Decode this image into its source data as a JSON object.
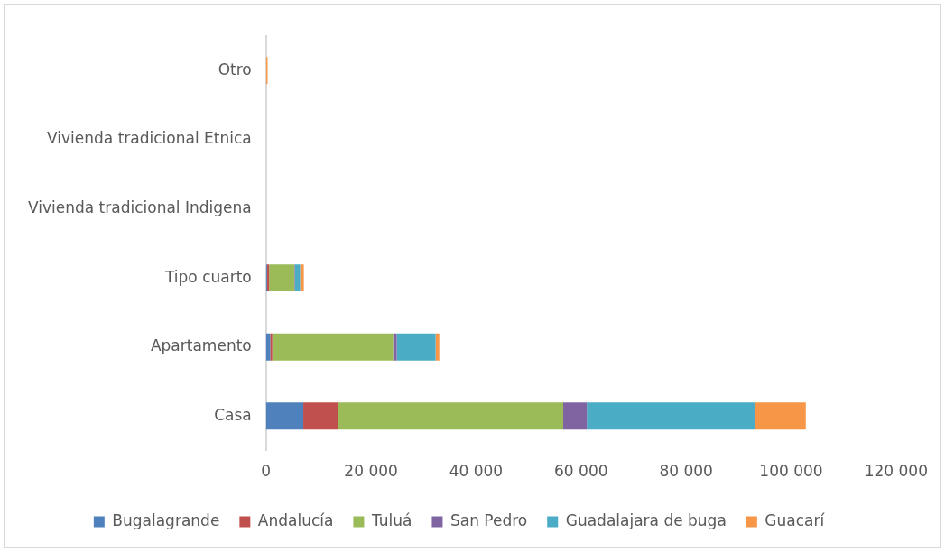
{
  "chart_data": {
    "type": "bar",
    "orientation": "horizontal",
    "stacked": true,
    "categories": [
      "Otro",
      "Vivienda tradicional Etnica",
      "Vivienda tradicional Indigena",
      "Tipo cuarto",
      "Apartamento",
      "Casa"
    ],
    "series": [
      {
        "name": "Bugalagrande",
        "color": "#4f81bd",
        "values": [
          0,
          0,
          0,
          200,
          800,
          7100
        ]
      },
      {
        "name": "Andalucía",
        "color": "#c0504d",
        "values": [
          0,
          0,
          0,
          400,
          400,
          6600
        ]
      },
      {
        "name": "Tuluá",
        "color": "#9bbb59",
        "values": [
          0,
          0,
          0,
          4800,
          23000,
          42900
        ]
      },
      {
        "name": "San Pedro",
        "color": "#8064a2",
        "values": [
          0,
          0,
          0,
          100,
          700,
          4500
        ]
      },
      {
        "name": "Guadalajara de buga",
        "color": "#4bacc6",
        "values": [
          0,
          0,
          0,
          1000,
          7400,
          32100
        ]
      },
      {
        "name": "Guacarí",
        "color": "#f79646",
        "values": [
          300,
          0,
          0,
          700,
          700,
          9600
        ]
      }
    ],
    "xlim": [
      0,
      120000
    ],
    "xticks": [
      {
        "value": 0,
        "label": "0"
      },
      {
        "value": 20000,
        "label": "20 000"
      },
      {
        "value": 40000,
        "label": "40 000"
      },
      {
        "value": 60000,
        "label": "60 000"
      },
      {
        "value": 80000,
        "label": "80 000"
      },
      {
        "value": 100000,
        "label": "100 000"
      },
      {
        "value": 120000,
        "label": "120 000"
      }
    ],
    "grid": false,
    "legend": "bottom"
  }
}
